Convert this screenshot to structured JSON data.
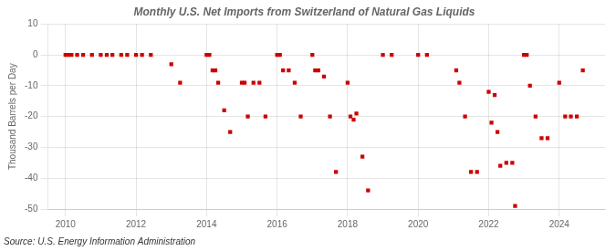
{
  "chart_data": {
    "type": "scatter",
    "title": "Monthly U.S. Net Imports from Switzerland of Natural Gas Liquids",
    "ylabel": "Thousand Barrels per Day",
    "annotations": [
      "Source: U.S. Energy Information Administration"
    ],
    "color": "#cc0000",
    "marker": "square",
    "grid": true,
    "xlim": [
      2009.5,
      2025.3
    ],
    "xticks": [
      2010,
      2012,
      2014,
      2016,
      2018,
      2020,
      2022,
      2024
    ],
    "ylim": [
      -50,
      10
    ],
    "yticks": [
      -50,
      -40,
      -30,
      -20,
      -10,
      0,
      10
    ],
    "x": [
      2010.0,
      2010.08,
      2010.17,
      2010.33,
      2010.5,
      2010.75,
      2011.0,
      2011.17,
      2011.33,
      2011.58,
      2011.75,
      2012.0,
      2012.17,
      2012.42,
      2013.0,
      2013.25,
      2014.0,
      2014.08,
      2014.17,
      2014.25,
      2014.33,
      2014.5,
      2014.67,
      2015.0,
      2015.08,
      2015.17,
      2015.33,
      2015.5,
      2015.67,
      2016.0,
      2016.08,
      2016.17,
      2016.33,
      2016.5,
      2016.67,
      2017.0,
      2017.08,
      2017.17,
      2017.33,
      2017.5,
      2017.67,
      2018.0,
      2018.08,
      2018.17,
      2018.25,
      2018.42,
      2018.58,
      2019.0,
      2019.25,
      2020.0,
      2020.25,
      2021.08,
      2021.17,
      2021.33,
      2021.5,
      2021.67,
      2022.0,
      2022.08,
      2022.17,
      2022.25,
      2022.33,
      2022.5,
      2022.67,
      2022.75,
      2023.0,
      2023.08,
      2023.17,
      2023.33,
      2023.5,
      2023.67,
      2024.0,
      2024.17,
      2024.33,
      2024.5,
      2024.67
    ],
    "values": [
      0,
      0,
      0,
      0,
      0,
      0,
      0,
      0,
      0,
      0,
      0,
      0,
      0,
      0,
      -3,
      -9,
      0,
      0,
      -5,
      -5,
      -9,
      -18,
      -25,
      -9,
      -9,
      -20,
      -9,
      -9,
      -20,
      0,
      0,
      -5,
      -5,
      -9,
      -20,
      0,
      -5,
      -5,
      -7,
      -20,
      -38,
      -9,
      -20,
      -21,
      -19,
      -33,
      -44,
      0,
      0,
      0,
      0,
      -5,
      -9,
      -20,
      -38,
      -38,
      -12,
      -22,
      -13,
      -25,
      -36,
      -35,
      -35,
      -49,
      0,
      0,
      -10,
      -20,
      -27,
      -27,
      -9,
      -20,
      -20,
      -20,
      -5
    ]
  }
}
